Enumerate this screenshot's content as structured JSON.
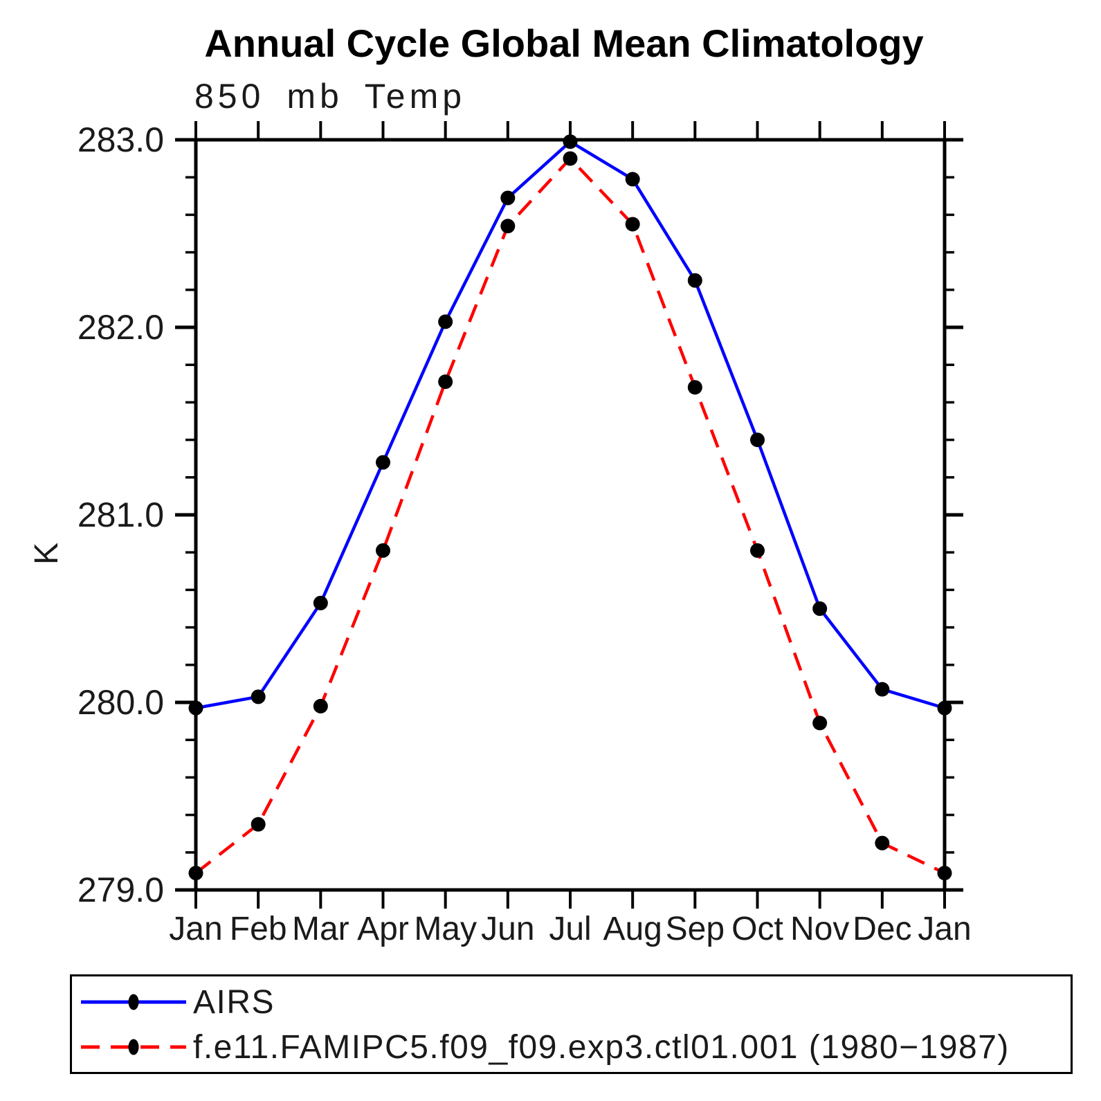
{
  "page": {
    "background": "#ffffff"
  },
  "chart_data": {
    "type": "line",
    "title": "Annual Cycle Global Mean Climatology",
    "subtitle": "850 mb Temp",
    "xlabel": "",
    "ylabel": "K",
    "categories": [
      "Jan",
      "Feb",
      "Mar",
      "Apr",
      "May",
      "Jun",
      "Jul",
      "Aug",
      "Sep",
      "Oct",
      "Nov",
      "Dec",
      "Jan"
    ],
    "ylim": [
      279.0,
      283.0
    ],
    "ytick_major": [
      279.0,
      280.0,
      281.0,
      282.0,
      283.0
    ],
    "ytick_labels": [
      "279.0",
      "280.0",
      "281.0",
      "282.0",
      "283.0"
    ],
    "ytick_minor_step": 0.2,
    "grid": false,
    "legend_position": "bottom",
    "marker": "filled-circle",
    "marker_color": "#000000",
    "axis_color": "#000000",
    "series": [
      {
        "name": "AIRS",
        "color": "#0000ff",
        "style": "solid",
        "values": [
          279.97,
          280.03,
          280.53,
          281.28,
          282.03,
          282.69,
          282.99,
          282.79,
          282.25,
          281.4,
          280.5,
          280.07,
          279.97
        ]
      },
      {
        "name": "f.e11.FAMIPC5.f09_f09.exp3.ctl01.001 (1980−1987)",
        "color": "#ff0000",
        "style": "dashed",
        "values": [
          279.09,
          279.35,
          279.98,
          280.81,
          281.71,
          282.54,
          282.9,
          282.55,
          281.68,
          280.81,
          279.89,
          279.25,
          279.09
        ]
      }
    ]
  }
}
